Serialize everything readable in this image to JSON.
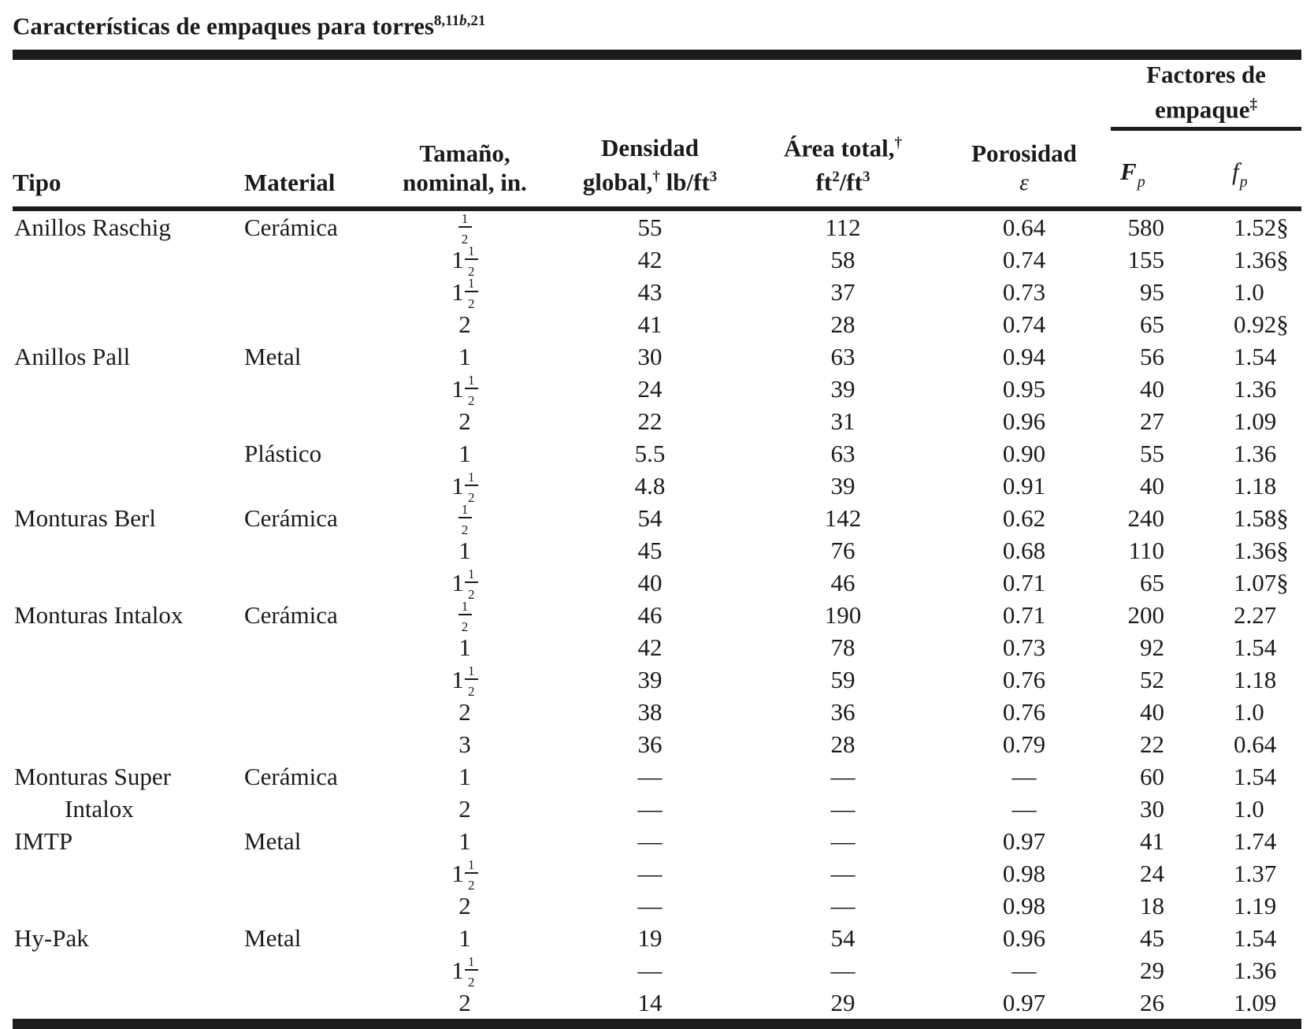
{
  "title": {
    "text": "Características de empaques para torres",
    "superscript": "8,11*b*,21"
  },
  "table": {
    "headers": {
      "tipo": "Tipo",
      "material": "Material",
      "tamano_line1": "Tamaño,",
      "tamano_line2": "nominal, in.",
      "densidad_line1": "Densidad",
      "densidad_line2": "global,^{†} lb/ft^{3}",
      "area_line1": "Área total,^{†}",
      "area_line2": "ft^{2}/ft^{3}",
      "porosidad_line1": "Porosidad",
      "porosidad_symbol": "ε",
      "factores_line1": "Factores de",
      "factores_line2": "empaque^{‡}",
      "fp_main": "F",
      "fp_sub": "p",
      "fp2_main": "f",
      "fp2_sub": "p"
    },
    "rows": [
      {
        "tipo": "Anillos Raschig",
        "material": "Cerámica",
        "size": "1/2",
        "dens": "55",
        "area": "112",
        "por": "0.64",
        "Fp": "580",
        "fp": "1.52§"
      },
      {
        "tipo": "",
        "material": "",
        "size": "1 1/2",
        "dens": "42",
        "area": "58",
        "por": "0.74",
        "Fp": "155",
        "fp": "1.36§"
      },
      {
        "tipo": "",
        "material": "",
        "size": "1 1/2",
        "dens": "43",
        "area": "37",
        "por": "0.73",
        "Fp": "95",
        "fp": "1.0"
      },
      {
        "tipo": "",
        "material": "",
        "size": "2",
        "dens": "41",
        "area": "28",
        "por": "0.74",
        "Fp": "65",
        "fp": "0.92§"
      },
      {
        "tipo": "Anillos Pall",
        "material": "Metal",
        "size": "1",
        "dens": "30",
        "area": "63",
        "por": "0.94",
        "Fp": "56",
        "fp": "1.54"
      },
      {
        "tipo": "",
        "material": "",
        "size": "1 1/2",
        "dens": "24",
        "area": "39",
        "por": "0.95",
        "Fp": "40",
        "fp": "1.36"
      },
      {
        "tipo": "",
        "material": "",
        "size": "2",
        "dens": "22",
        "area": "31",
        "por": "0.96",
        "Fp": "27",
        "fp": "1.09"
      },
      {
        "tipo": "",
        "material": "Plástico",
        "size": "1",
        "dens": "5.5",
        "area": "63",
        "por": "0.90",
        "Fp": "55",
        "fp": "1.36"
      },
      {
        "tipo": "",
        "material": "",
        "size": "1 1/2",
        "dens": "4.8",
        "area": "39",
        "por": "0.91",
        "Fp": "40",
        "fp": "1.18"
      },
      {
        "tipo": "Monturas Berl",
        "material": "Cerámica",
        "size": "1/2",
        "dens": "54",
        "area": "142",
        "por": "0.62",
        "Fp": "240",
        "fp": "1.58§"
      },
      {
        "tipo": "",
        "material": "",
        "size": "1",
        "dens": "45",
        "area": "76",
        "por": "0.68",
        "Fp": "110",
        "fp": "1.36§"
      },
      {
        "tipo": "",
        "material": "",
        "size": "1 1/2",
        "dens": "40",
        "area": "46",
        "por": "0.71",
        "Fp": "65",
        "fp": "1.07§"
      },
      {
        "tipo": "Monturas Intalox",
        "material": "Cerámica",
        "size": "1/2",
        "dens": "46",
        "area": "190",
        "por": "0.71",
        "Fp": "200",
        "fp": "2.27"
      },
      {
        "tipo": "",
        "material": "",
        "size": "1",
        "dens": "42",
        "area": "78",
        "por": "0.73",
        "Fp": "92",
        "fp": "1.54"
      },
      {
        "tipo": "",
        "material": "",
        "size": "1 1/2",
        "dens": "39",
        "area": "59",
        "por": "0.76",
        "Fp": "52",
        "fp": "1.18"
      },
      {
        "tipo": "",
        "material": "",
        "size": "2",
        "dens": "38",
        "area": "36",
        "por": "0.76",
        "Fp": "40",
        "fp": "1.0"
      },
      {
        "tipo": "",
        "material": "",
        "size": "3",
        "dens": "36",
        "area": "28",
        "por": "0.79",
        "Fp": "22",
        "fp": "0.64"
      },
      {
        "tipo": "Monturas Super",
        "material": "Cerámica",
        "size": "1",
        "dens": "—",
        "area": "––",
        "por": "—",
        "Fp": "60",
        "fp": "1.54"
      },
      {
        "tipo": "Intalox",
        "indent": true,
        "material": "",
        "size": "2",
        "dens": "—",
        "area": "––",
        "por": "—",
        "Fp": "30",
        "fp": "1.0"
      },
      {
        "tipo": "IMTP",
        "material": "Metal",
        "size": "1",
        "dens": "—",
        "area": "––",
        "por": "0.97",
        "Fp": "41",
        "fp": "1.74"
      },
      {
        "tipo": "",
        "material": "",
        "size": "1 1/2",
        "dens": "—",
        "area": "––",
        "por": "0.98",
        "Fp": "24",
        "fp": "1.37"
      },
      {
        "tipo": "",
        "material": "",
        "size": "2",
        "dens": "—",
        "area": "––",
        "por": "0.98",
        "Fp": "18",
        "fp": "1.19"
      },
      {
        "tipo": "Hy-Pak",
        "material": "Metal",
        "size": "1",
        "dens": "19",
        "area": "54",
        "por": "0.96",
        "Fp": "45",
        "fp": "1.54"
      },
      {
        "tipo": "",
        "material": "",
        "size": "1 1/2",
        "dens": "—",
        "area": "––",
        "por": "—",
        "Fp": "29",
        "fp": "1.36"
      },
      {
        "tipo": "",
        "material": "",
        "size": "2",
        "dens": "14",
        "area": "29",
        "por": "0.97",
        "Fp": "26",
        "fp": "1.09"
      }
    ]
  }
}
